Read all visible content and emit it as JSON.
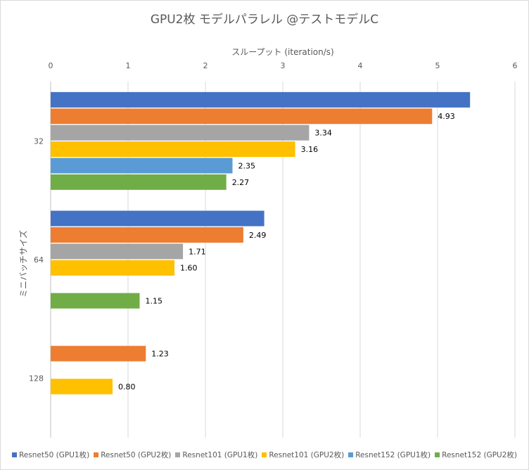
{
  "chart_data": {
    "type": "bar",
    "orientation": "horizontal",
    "title": "GPU2枚 モデルパラレル @テストモデルC",
    "xlabel": "スループット (iteration/s)",
    "ylabel": "ミニバッチサイズ",
    "xlim": [
      0,
      6
    ],
    "xticks": [
      "0",
      "1",
      "2",
      "3",
      "4",
      "5",
      "6"
    ],
    "categories": [
      "32",
      "64",
      "128"
    ],
    "series": [
      {
        "name": "Resnet50 (GPU1枚)",
        "color": "#4472c4",
        "values": [
          5.42,
          2.76,
          null
        ],
        "labels": [
          null,
          null,
          null
        ]
      },
      {
        "name": "Resnet50 (GPU2枚)",
        "color": "#ed7d31",
        "values": [
          4.93,
          2.49,
          1.23
        ],
        "labels": [
          "4.93",
          "2.49",
          "1.23"
        ]
      },
      {
        "name": "Resnet101 (GPU1枚)",
        "color": "#a5a5a5",
        "values": [
          3.34,
          1.71,
          null
        ],
        "labels": [
          "3.34",
          "1.71",
          null
        ]
      },
      {
        "name": "Resnet101 (GPU2枚)",
        "color": "#ffc000",
        "values": [
          3.16,
          1.6,
          0.8
        ],
        "labels": [
          "3.16",
          "1.60",
          "0.80"
        ]
      },
      {
        "name": "Resnet152 (GPU1枚)",
        "color": "#5b9bd5",
        "values": [
          2.35,
          null,
          null
        ],
        "labels": [
          "2.35",
          null,
          null
        ]
      },
      {
        "name": "Resnet152 (GPU2枚)",
        "color": "#70ad47",
        "values": [
          2.27,
          1.15,
          null
        ],
        "labels": [
          "2.27",
          "1.15",
          null
        ]
      }
    ],
    "grid": true,
    "legend": "bottom"
  }
}
